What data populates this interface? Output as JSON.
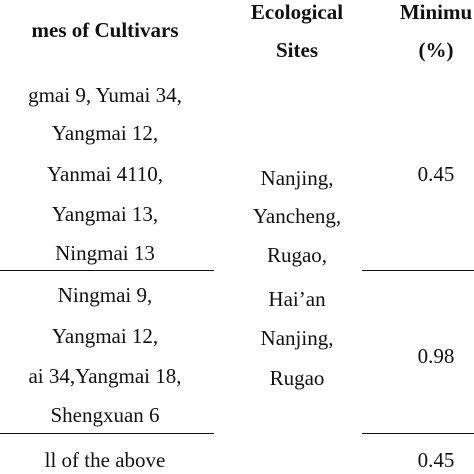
{
  "table": {
    "headers": {
      "cultivars": "mes of Cultivars",
      "sites_line1": "Ecological",
      "sites_line2": "Sites",
      "min_line1": "Minimu",
      "min_line2": "(%)"
    },
    "groups": [
      {
        "cultivars": [
          "gmai 9, Yumai 34,",
          "Yangmai 12,",
          "Yanmai 4110,",
          "Yangmai 13,",
          "Ningmai 13"
        ],
        "sites": [
          "Nanjing,",
          "Yancheng,",
          "Rugao,"
        ],
        "minimum": "0.45"
      },
      {
        "cultivars": [
          "Ningmai 9,",
          "Yangmai 12,",
          "ai 34,Yangmai 18,",
          "Shengxuan 6"
        ],
        "sites": [
          "Hai’an",
          "Nanjing,",
          "Rugao"
        ],
        "minimum": "0.98"
      },
      {
        "cultivars": [
          "ll of the above"
        ],
        "sites": [],
        "minimum": "0.45"
      }
    ]
  }
}
